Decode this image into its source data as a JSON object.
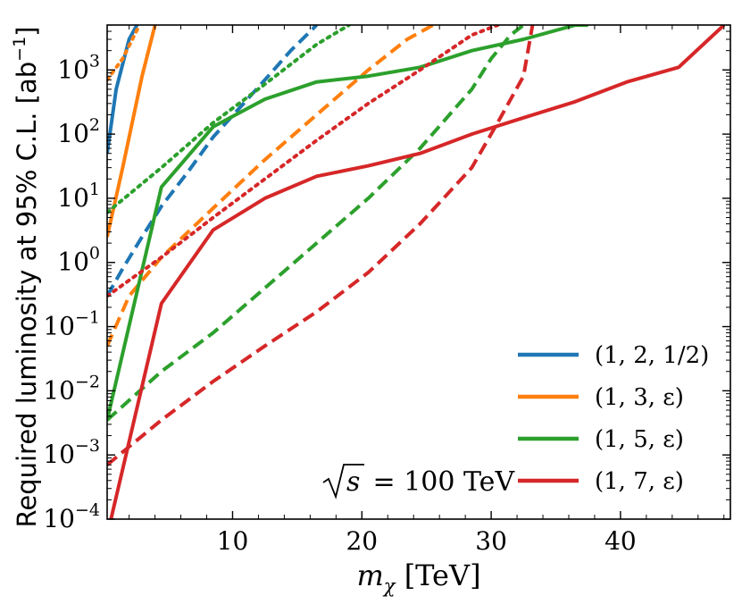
{
  "chart_data": {
    "type": "line",
    "xlabel": "m_χ [TeV]",
    "xlabel_main": "m",
    "xlabel_sub": "χ",
    "xlabel_unit": " [TeV]",
    "ylabel": "Required luminosity at 95% C.L. [ab⁻¹]",
    "ylabel_main": "Required luminosity at 95% C.L. [ab",
    "ylabel_sup": "−1",
    "ylabel_close": "]",
    "xlim": [
      0.3,
      48.5
    ],
    "ylim_log10": [
      -4,
      3.7
    ],
    "yscale": "log",
    "xticks": [
      10,
      20,
      30,
      40
    ],
    "xtick_labels": [
      "10",
      "20",
      "30",
      "40"
    ],
    "yticks_log10": [
      -4,
      -3,
      -2,
      -1,
      0,
      1,
      2,
      3
    ],
    "ytick_exponents": [
      "−4",
      "−3",
      "−2",
      "−1",
      "0",
      "1",
      "2",
      "3"
    ],
    "ytick_base": "10",
    "grid": false,
    "legend_position": "bottom-right",
    "annotation": "√s = 100 TeV",
    "annotation_radicand": "s",
    "annotation_rest": " = 100 TeV",
    "styles_note": "solid / dashed / dotted curves per multiplet",
    "series": [
      {
        "name": "(1, 2, 1/2)",
        "color": "#1f77b4",
        "style": "solid",
        "x": [
          0.3,
          1.0,
          2.0,
          2.6
        ],
        "y": [
          50,
          500,
          3000,
          5000
        ]
      },
      {
        "name": "(1, 2, 1/2)",
        "color": "#1f77b4",
        "style": "dashed",
        "x": [
          0.3,
          1.5,
          3.0,
          4.5,
          6.5,
          8.5,
          10.5,
          12.5,
          14.5,
          16.5
        ],
        "y": [
          0.3,
          0.8,
          2.5,
          7.5,
          25,
          90,
          250,
          700,
          2000,
          5000
        ]
      },
      {
        "name": "(1, 3, ε)",
        "color": "#ff7f0e",
        "style": "solid",
        "x": [
          0.3,
          1.5,
          3.0,
          4.0
        ],
        "y": [
          2.5,
          30,
          800,
          5000
        ]
      },
      {
        "name": "(1, 3, ε)",
        "color": "#ff7f0e",
        "style": "dashed",
        "x": [
          0.3,
          2.0,
          4.5,
          8.5,
          12.5,
          16.5,
          20.5,
          23.5,
          25.5
        ],
        "y": [
          0.05,
          0.3,
          1.2,
          7,
          40,
          200,
          1000,
          3000,
          5000
        ]
      },
      {
        "name": "(1, 3, ε)",
        "color": "#ff7f0e",
        "style": "dotted",
        "x": [
          0.3,
          1.5,
          2.8
        ],
        "y": [
          700,
          1500,
          5000
        ]
      },
      {
        "name": "(1, 5, ε)",
        "color": "#2ca02c",
        "style": "solid",
        "x": [
          0.3,
          4.5,
          8.5,
          12.5,
          16.5,
          20.5,
          24.5,
          28.5,
          32.5,
          36.5,
          37.5
        ],
        "y": [
          0.0035,
          15,
          130,
          350,
          650,
          800,
          1100,
          2000,
          3000,
          5000,
          5000
        ]
      },
      {
        "name": "(1, 5, ε)",
        "color": "#2ca02c",
        "style": "dashed",
        "x": [
          0.3,
          4.5,
          8.5,
          12.5,
          16.5,
          20.5,
          24.5,
          28.5,
          30.0,
          31.5,
          32.5
        ],
        "y": [
          0.0035,
          0.02,
          0.08,
          0.4,
          2,
          10,
          60,
          500,
          1500,
          3500,
          5000
        ]
      },
      {
        "name": "(1, 5, ε)",
        "color": "#2ca02c",
        "style": "dotted",
        "x": [
          0.3,
          4.5,
          8.5,
          12.5,
          16.5,
          19.0
        ],
        "y": [
          6,
          30,
          150,
          600,
          2500,
          5000
        ]
      },
      {
        "name": "(1, 7, ε)",
        "color": "#d62728",
        "style": "solid",
        "x": [
          0.6,
          4.5,
          8.5,
          12.5,
          16.5,
          20.5,
          24.5,
          28.5,
          32.5,
          36.5,
          40.5,
          44.5,
          48.0
        ],
        "y": [
          0.0001,
          0.23,
          3.2,
          10,
          22,
          32,
          50,
          100,
          180,
          320,
          650,
          1100,
          5000
        ]
      },
      {
        "name": "(1, 7, ε)",
        "color": "#d62728",
        "style": "dashed",
        "x": [
          0.3,
          4.5,
          8.5,
          12.5,
          16.5,
          20.5,
          24.5,
          28.5,
          30.5,
          32.5,
          33.2
        ],
        "y": [
          0.0007,
          0.0035,
          0.014,
          0.05,
          0.17,
          0.7,
          4,
          30,
          150,
          800,
          5000
        ]
      },
      {
        "name": "(1, 7, ε)",
        "color": "#d62728",
        "style": "dotted",
        "x": [
          0.3,
          4.5,
          8.5,
          12.5,
          16.5,
          20.5,
          24.5,
          28.5,
          30.5
        ],
        "y": [
          0.3,
          1.2,
          5,
          20,
          80,
          300,
          1000,
          3500,
          5000
        ]
      }
    ],
    "legend": [
      {
        "label": "(1, 2, 1/2)",
        "color": "#1f77b4"
      },
      {
        "label": "(1, 3, ε)",
        "color": "#ff7f0e"
      },
      {
        "label": "(1, 5, ε)",
        "color": "#2ca02c"
      },
      {
        "label": "(1, 7, ε)",
        "color": "#d62728"
      }
    ]
  }
}
